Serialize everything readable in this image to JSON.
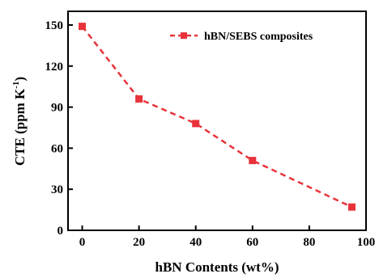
{
  "chart_data": {
    "type": "line",
    "xlabel": "hBN Contents (wt%)",
    "ylabel_main": "CTE (ppm K",
    "ylabel_sup": "-1",
    "ylabel_end": ")",
    "xlim": [
      -5,
      100
    ],
    "ylim": [
      0,
      160
    ],
    "xticks": [
      0,
      20,
      40,
      60,
      80,
      100
    ],
    "yticks": [
      0,
      30,
      60,
      90,
      120,
      150
    ],
    "grid": false,
    "legend_position": "top-right",
    "series": [
      {
        "name": "hBN/SEBS composites",
        "color": "#e8333a",
        "line_style": "dashed",
        "marker": "square",
        "x": [
          0,
          20,
          40,
          60,
          95
        ],
        "y": [
          149,
          96,
          78,
          51,
          17
        ]
      }
    ]
  }
}
